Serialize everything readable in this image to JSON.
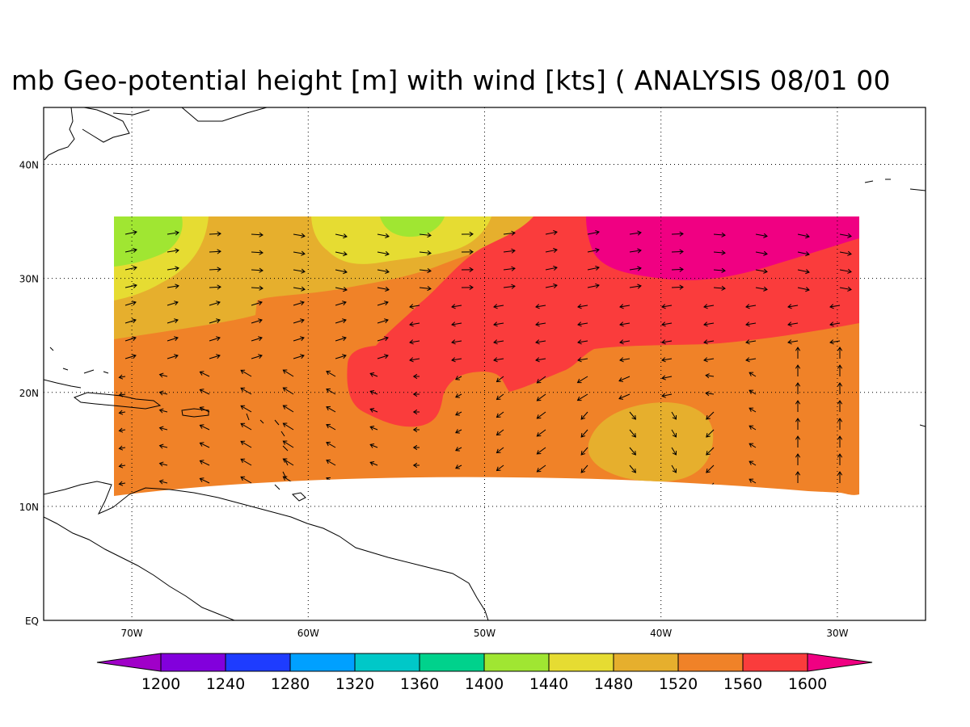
{
  "title": "mb Geo-potential height [m] with wind [kts] ( ANALYSIS 08/01 00",
  "chart_data": {
    "type": "map",
    "projection": "lat-lon",
    "lon_range": [
      -75,
      -25
    ],
    "lat_range": [
      0,
      45
    ],
    "grid": "dotted",
    "x_ticks": [
      {
        "value": -70,
        "label": "70W"
      },
      {
        "value": -60,
        "label": "60W"
      },
      {
        "value": -50,
        "label": "50W"
      },
      {
        "value": -40,
        "label": "40W"
      },
      {
        "value": -30,
        "label": "30W"
      }
    ],
    "y_ticks": [
      {
        "value": 0,
        "label": "EQ"
      },
      {
        "value": 10,
        "label": "10N"
      },
      {
        "value": 20,
        "label": "20N"
      },
      {
        "value": 30,
        "label": "30N"
      },
      {
        "value": 40,
        "label": "40N"
      }
    ],
    "colorbar": {
      "levels": [
        1200,
        1240,
        1280,
        1320,
        1360,
        1400,
        1440,
        1480,
        1520,
        1560,
        1600
      ],
      "colors": [
        "#a000c8",
        "#8200dc",
        "#1e3cff",
        "#00a0ff",
        "#00c8c8",
        "#00d28c",
        "#a0e632",
        "#e6dc32",
        "#e6af2d",
        "#f08228",
        "#fa3c3c",
        "#f00082"
      ]
    },
    "field_regions": [
      {
        "level": 1560,
        "color": "#f08228",
        "description_bounds": "data domain"
      },
      {
        "level": 1520,
        "color": "#e6af2d"
      },
      {
        "level": 1480,
        "color": "#e6dc32"
      },
      {
        "level": 1440,
        "color": "#a0e632"
      },
      {
        "level": 1600,
        "color": "#fa3c3c"
      },
      {
        "level": 1640,
        "color": "#f00082"
      }
    ],
    "wind_vectors": "arrows on regular lat-lon grid over data domain"
  }
}
